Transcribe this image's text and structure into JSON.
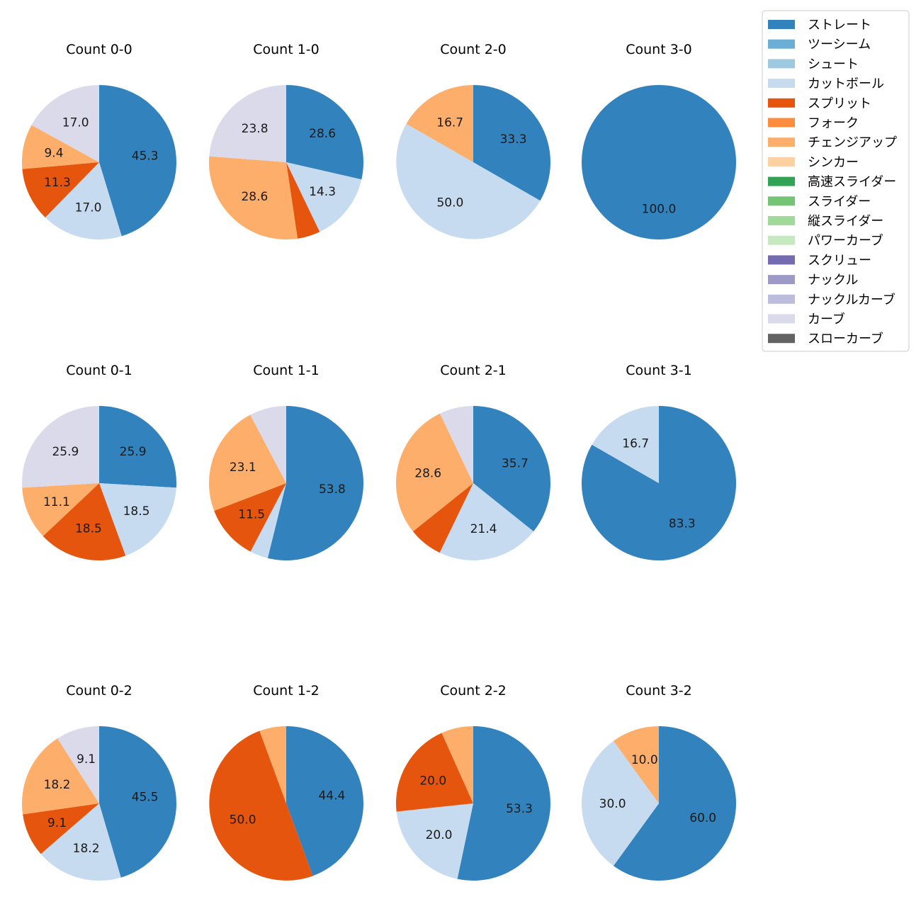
{
  "chart_data": {
    "type": "pie",
    "legend": {
      "placement": "top-right",
      "entries": [
        {
          "name": "ストレート",
          "color": "#3182bd"
        },
        {
          "name": "ツーシーム",
          "color": "#6baed6"
        },
        {
          "name": "シュート",
          "color": "#9ecae1"
        },
        {
          "name": "カットボール",
          "color": "#c6dbef"
        },
        {
          "name": "スプリット",
          "color": "#e6550d"
        },
        {
          "name": "フォーク",
          "color": "#fd8d3c"
        },
        {
          "name": "チェンジアップ",
          "color": "#fdae6b"
        },
        {
          "name": "シンカー",
          "color": "#fdd0a2"
        },
        {
          "name": "高速スライダー",
          "color": "#31a354"
        },
        {
          "name": "スライダー",
          "color": "#74c476"
        },
        {
          "name": "縦スライダー",
          "color": "#a1d99b"
        },
        {
          "name": "パワーカーブ",
          "color": "#c7e9c0"
        },
        {
          "name": "スクリュー",
          "color": "#756bb1"
        },
        {
          "name": "ナックル",
          "color": "#9e9ac8"
        },
        {
          "name": "ナックルカーブ",
          "color": "#bcbddc"
        },
        {
          "name": "カーブ",
          "color": "#dadaeb"
        },
        {
          "name": "スローカーブ",
          "color": "#636363"
        }
      ]
    },
    "charts": [
      {
        "title": "Count 0-0",
        "slices": [
          {
            "pitch": "ストレート",
            "value": 45.3,
            "label": "45.3"
          },
          {
            "pitch": "カットボール",
            "value": 17.0,
            "label": "17.0"
          },
          {
            "pitch": "スプリット",
            "value": 11.3,
            "label": "11.3"
          },
          {
            "pitch": "チェンジアップ",
            "value": 9.4,
            "label": "9.4"
          },
          {
            "pitch": "カーブ",
            "value": 17.0,
            "label": "17.0"
          }
        ]
      },
      {
        "title": "Count 1-0",
        "slices": [
          {
            "pitch": "ストレート",
            "value": 28.6,
            "label": "28.6"
          },
          {
            "pitch": "カットボール",
            "value": 14.3,
            "label": "14.3"
          },
          {
            "pitch": "スプリット",
            "value": 4.8,
            "label": ""
          },
          {
            "pitch": "チェンジアップ",
            "value": 28.6,
            "label": "28.6"
          },
          {
            "pitch": "カーブ",
            "value": 23.8,
            "label": "23.8"
          }
        ]
      },
      {
        "title": "Count 2-0",
        "slices": [
          {
            "pitch": "ストレート",
            "value": 33.3,
            "label": "33.3"
          },
          {
            "pitch": "カットボール",
            "value": 50.0,
            "label": "50.0"
          },
          {
            "pitch": "チェンジアップ",
            "value": 16.7,
            "label": "16.7"
          }
        ]
      },
      {
        "title": "Count 3-0",
        "slices": [
          {
            "pitch": "ストレート",
            "value": 100.0,
            "label": "100.0"
          }
        ]
      },
      {
        "title": "Count 0-1",
        "slices": [
          {
            "pitch": "ストレート",
            "value": 25.9,
            "label": "25.9"
          },
          {
            "pitch": "カットボール",
            "value": 18.5,
            "label": "18.5"
          },
          {
            "pitch": "スプリット",
            "value": 18.5,
            "label": "18.5"
          },
          {
            "pitch": "チェンジアップ",
            "value": 11.1,
            "label": "11.1"
          },
          {
            "pitch": "カーブ",
            "value": 25.9,
            "label": "25.9"
          }
        ]
      },
      {
        "title": "Count 1-1",
        "slices": [
          {
            "pitch": "ストレート",
            "value": 53.8,
            "label": "53.8"
          },
          {
            "pitch": "カットボール",
            "value": 3.8,
            "label": ""
          },
          {
            "pitch": "スプリット",
            "value": 11.5,
            "label": "11.5"
          },
          {
            "pitch": "チェンジアップ",
            "value": 23.1,
            "label": "23.1"
          },
          {
            "pitch": "カーブ",
            "value": 7.7,
            "label": ""
          }
        ]
      },
      {
        "title": "Count 2-1",
        "slices": [
          {
            "pitch": "ストレート",
            "value": 35.7,
            "label": "35.7"
          },
          {
            "pitch": "カットボール",
            "value": 21.4,
            "label": "21.4"
          },
          {
            "pitch": "スプリット",
            "value": 7.1,
            "label": ""
          },
          {
            "pitch": "チェンジアップ",
            "value": 28.6,
            "label": "28.6"
          },
          {
            "pitch": "カーブ",
            "value": 7.1,
            "label": ""
          }
        ]
      },
      {
        "title": "Count 3-1",
        "slices": [
          {
            "pitch": "ストレート",
            "value": 83.3,
            "label": "83.3"
          },
          {
            "pitch": "カットボール",
            "value": 16.7,
            "label": "16.7"
          }
        ]
      },
      {
        "title": "Count 0-2",
        "slices": [
          {
            "pitch": "ストレート",
            "value": 45.5,
            "label": "45.5"
          },
          {
            "pitch": "カットボール",
            "value": 18.2,
            "label": "18.2"
          },
          {
            "pitch": "スプリット",
            "value": 9.1,
            "label": "9.1"
          },
          {
            "pitch": "チェンジアップ",
            "value": 18.2,
            "label": "18.2"
          },
          {
            "pitch": "カーブ",
            "value": 9.1,
            "label": "9.1"
          }
        ]
      },
      {
        "title": "Count 1-2",
        "slices": [
          {
            "pitch": "ストレート",
            "value": 44.4,
            "label": "44.4"
          },
          {
            "pitch": "スプリット",
            "value": 50.0,
            "label": "50.0"
          },
          {
            "pitch": "チェンジアップ",
            "value": 5.6,
            "label": ""
          }
        ]
      },
      {
        "title": "Count 2-2",
        "slices": [
          {
            "pitch": "ストレート",
            "value": 53.3,
            "label": "53.3"
          },
          {
            "pitch": "カットボール",
            "value": 20.0,
            "label": "20.0"
          },
          {
            "pitch": "スプリット",
            "value": 20.0,
            "label": "20.0"
          },
          {
            "pitch": "チェンジアップ",
            "value": 6.7,
            "label": ""
          }
        ]
      },
      {
        "title": "Count 3-2",
        "slices": [
          {
            "pitch": "ストレート",
            "value": 60.0,
            "label": "60.0"
          },
          {
            "pitch": "カットボール",
            "value": 30.0,
            "label": "30.0"
          },
          {
            "pitch": "チェンジアップ",
            "value": 10.0,
            "label": "10.0"
          }
        ]
      }
    ]
  }
}
